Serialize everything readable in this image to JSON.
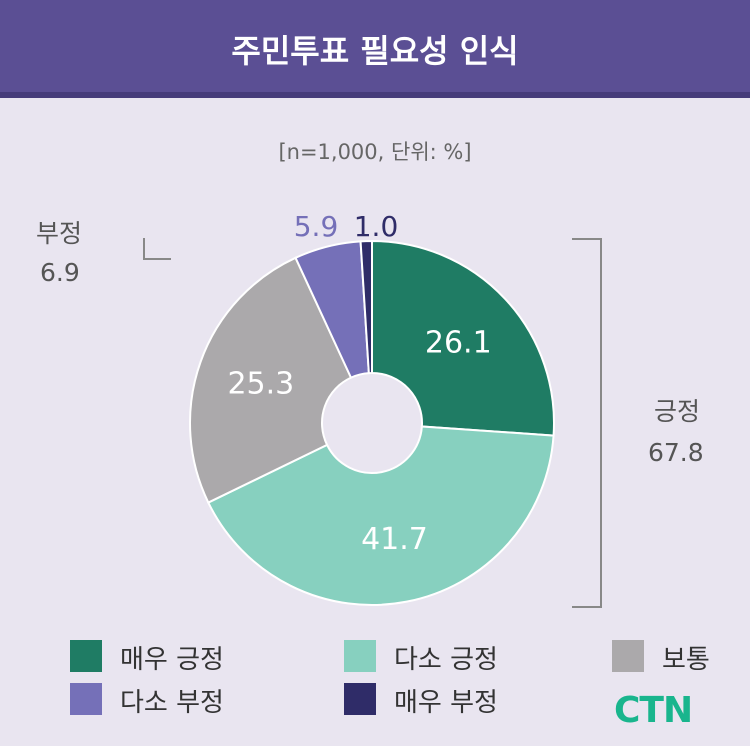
{
  "title": "주민투표 필요성 인식",
  "subtitle": "[n=1,000, 단위: %]",
  "groups": {
    "negative": {
      "label": "부정",
      "value": "6.9"
    },
    "positive": {
      "label": "긍정",
      "value": "67.8"
    }
  },
  "logo": "CTN",
  "chart_data": {
    "type": "pie",
    "donut": true,
    "title": "주민투표 필요성 인식",
    "categories": [
      "매우 긍정",
      "다소 긍정",
      "보통",
      "다소 부정",
      "매우 부정"
    ],
    "values": [
      26.1,
      41.7,
      25.3,
      5.9,
      1.0
    ],
    "labels": [
      "26.1",
      "41.7",
      "25.3",
      "5.9",
      "1.0"
    ],
    "colors": [
      "#1f7c64",
      "#87d0bf",
      "#aba9ab",
      "#7570b8",
      "#2f2c68"
    ],
    "start": "12 o'clock, clockwise",
    "legend": "bottom"
  }
}
